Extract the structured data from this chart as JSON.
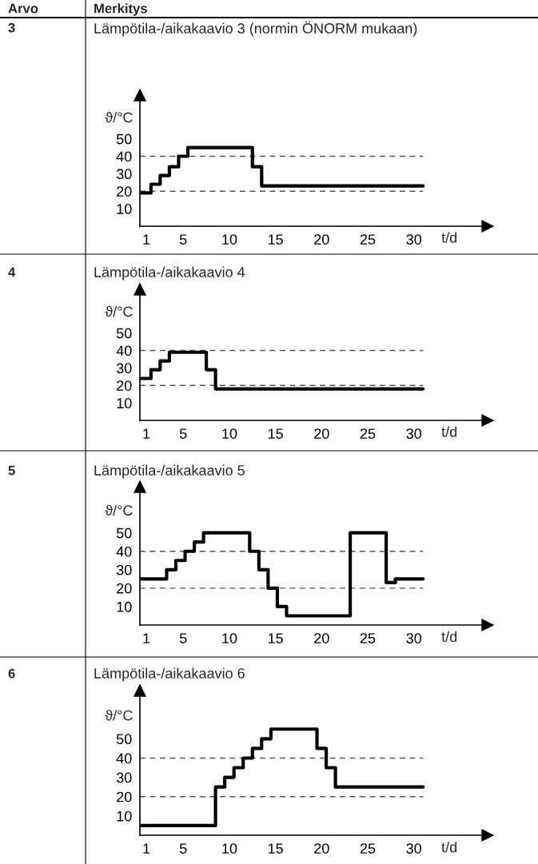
{
  "chart_data": [
    {
      "type": "step",
      "title": "Lämpötila-/aikakaavio 3 (normin ÖNORM mukaan)",
      "xlabel": "t/d",
      "ylabel": "ϑ/°C",
      "annotations": [
        "Arvo",
        "Merkitys",
        "3"
      ],
      "series": [
        {
          "color": "#000000",
          "x": [
            0.5,
            1.5,
            2.5,
            3.5,
            4.5,
            5.5,
            12.5,
            13.5,
            31
          ],
          "values": [
            19,
            24,
            29,
            34,
            40,
            45,
            34,
            23,
            23
          ]
        }
      ],
      "xlim": [
        0.3,
        38
      ],
      "xticks": [
        1,
        5,
        10,
        15,
        20,
        25,
        30
      ],
      "ylim": [
        0,
        75
      ],
      "yticks": [
        10,
        20,
        30,
        40,
        50
      ],
      "ref_lines": [
        {
          "axis": "y",
          "value": 20,
          "color": "#555555",
          "line_style": "dashed"
        },
        {
          "axis": "y",
          "value": 40,
          "color": "#555555",
          "line_style": "dashed"
        }
      ],
      "grid": false,
      "legend": false
    },
    {
      "type": "step",
      "title": "Lämpötila-/aikakaavio 4",
      "xlabel": "t/d",
      "ylabel": "ϑ/°C",
      "annotations": [
        "4"
      ],
      "series": [
        {
          "color": "#000000",
          "x": [
            0.5,
            1.5,
            2.5,
            3.5,
            7.5,
            8.5,
            31
          ],
          "values": [
            24,
            29,
            34,
            39,
            29,
            18,
            18
          ]
        }
      ],
      "xlim": [
        0.3,
        38
      ],
      "xticks": [
        1,
        5,
        10,
        15,
        20,
        25,
        30
      ],
      "ylim": [
        0,
        75
      ],
      "yticks": [
        10,
        20,
        30,
        40,
        50
      ],
      "ref_lines": [
        {
          "axis": "y",
          "value": 20,
          "color": "#555555",
          "line_style": "dashed"
        },
        {
          "axis": "y",
          "value": 40,
          "color": "#555555",
          "line_style": "dashed"
        }
      ],
      "grid": false,
      "legend": false
    },
    {
      "type": "step",
      "title": "Lämpötila-/aikakaavio 5",
      "xlabel": "t/d",
      "ylabel": "ϑ/°C",
      "annotations": [
        "5"
      ],
      "series": [
        {
          "color": "#000000",
          "x": [
            0.5,
            3.2,
            4.2,
            5.2,
            6.2,
            7.2,
            12.2,
            13.2,
            14.2,
            15.2,
            16.2,
            23.1,
            27,
            28,
            31
          ],
          "values": [
            25,
            30,
            35,
            40,
            45,
            50,
            40,
            30,
            20,
            10,
            5,
            50,
            23,
            25,
            25
          ]
        }
      ],
      "xlim": [
        0.3,
        38
      ],
      "xticks": [
        1,
        5,
        10,
        15,
        20,
        25,
        30
      ],
      "ylim": [
        0,
        75
      ],
      "yticks": [
        10,
        20,
        30,
        40,
        50
      ],
      "ref_lines": [
        {
          "axis": "y",
          "value": 20,
          "color": "#555555",
          "line_style": "dashed"
        },
        {
          "axis": "y",
          "value": 40,
          "color": "#555555",
          "line_style": "dashed"
        }
      ],
      "grid": false,
      "legend": false
    },
    {
      "type": "step",
      "title": "Lämpötila-/aikakaavio 6",
      "xlabel": "t/d",
      "ylabel": "ϑ/°C",
      "annotations": [
        "6"
      ],
      "series": [
        {
          "color": "#000000",
          "x": [
            0.5,
            8.5,
            9.5,
            10.5,
            11.5,
            12.5,
            13.5,
            14.5,
            19.5,
            20.5,
            21.5,
            31
          ],
          "values": [
            5,
            25,
            30,
            35,
            40,
            45,
            50,
            55,
            45,
            35,
            25,
            25
          ]
        }
      ],
      "xlim": [
        0.3,
        38
      ],
      "xticks": [
        1,
        5,
        10,
        15,
        20,
        25,
        30
      ],
      "ylim": [
        0,
        75
      ],
      "yticks": [
        10,
        20,
        30,
        40,
        50
      ],
      "ref_lines": [
        {
          "axis": "y",
          "value": 20,
          "color": "#555555",
          "line_style": "dashed"
        },
        {
          "axis": "y",
          "value": 40,
          "color": "#555555",
          "line_style": "dashed"
        }
      ],
      "grid": false,
      "legend": false
    }
  ]
}
